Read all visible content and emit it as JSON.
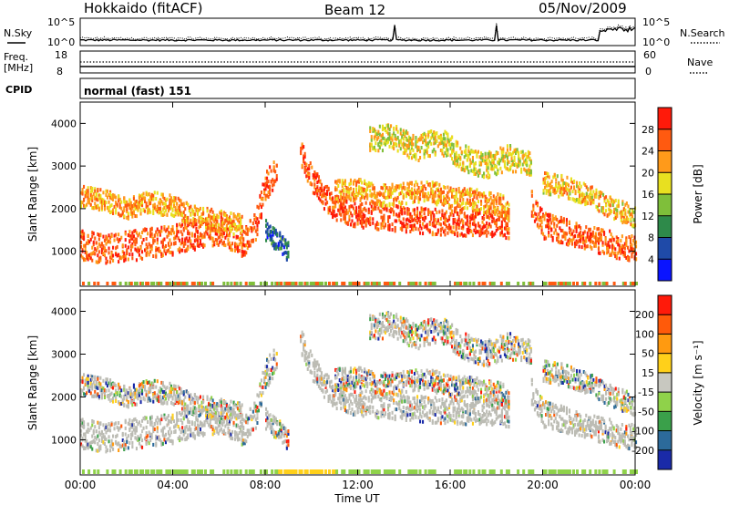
{
  "header": {
    "station": "Hokkaido (fitACF)",
    "beam": "Beam 12",
    "date": "05/Nov/2009"
  },
  "noise_panel": {
    "left_label": "N.Sky",
    "right_label": "N.Search",
    "tick_top": "10^5",
    "tick_bottom": "10^0"
  },
  "freq_panel": {
    "left_label_1": "Freq.",
    "left_label_2": "[MHz]",
    "right_label": "Nave",
    "left_ticks": [
      "18",
      "8"
    ],
    "right_ticks": [
      "60",
      "0"
    ]
  },
  "cpid_panel": {
    "label": "CPID",
    "mode": "normal (fast) 151"
  },
  "chart_data": [
    {
      "type": "heatmap",
      "title": "Power",
      "ylabel": "Slant Range [km]",
      "xlabel": "",
      "x_range_hours": [
        0,
        24
      ],
      "ylim": [
        180,
        4500
      ],
      "yticks": [
        "1000",
        "2000",
        "3000",
        "4000"
      ],
      "colorbar": {
        "label": "Power [dB]",
        "ticks": [
          "28",
          "24",
          "20",
          "16",
          "12",
          "8",
          "4"
        ],
        "colors": [
          "#0a14ff",
          "#1f4aa8",
          "#2e8a4a",
          "#7fbf3a",
          "#e8e020",
          "#ff9a1a",
          "#ff5a10",
          "#ff1a0a"
        ]
      },
      "echo_bands": [
        {
          "name": "main-F",
          "points": [
            [
              0,
              1150
            ],
            [
              1,
              1050
            ],
            [
              2,
              1100
            ],
            [
              3,
              1200
            ],
            [
              4,
              1250
            ],
            [
              5,
              1400
            ],
            [
              6,
              1500
            ],
            [
              7,
              1200
            ],
            [
              7.5,
              1500
            ],
            [
              8,
              2500
            ],
            [
              8.5,
              3000
            ]
          ],
          "width": 350,
          "power": 26
        },
        {
          "name": "upper",
          "points": [
            [
              0,
              2300
            ],
            [
              1,
              2200
            ],
            [
              2,
              2000
            ],
            [
              3,
              2150
            ],
            [
              4,
              2050
            ],
            [
              5,
              1800
            ],
            [
              6,
              1700
            ],
            [
              7,
              1600
            ]
          ],
          "width": 250,
          "power": 22
        },
        {
          "name": "descending",
          "points": [
            [
              9.5,
              3300
            ],
            [
              10,
              2700
            ],
            [
              10.5,
              2300
            ],
            [
              11,
              2000
            ],
            [
              12,
              1850
            ],
            [
              13,
              1800
            ],
            [
              14,
              1750
            ],
            [
              15,
              1700
            ],
            [
              16,
              1650
            ],
            [
              17,
              1650
            ],
            [
              18,
              1650
            ],
            [
              18.5,
              1600
            ]
          ],
          "width": 300,
          "power": 27
        },
        {
          "name": "upper-day",
          "points": [
            [
              11,
              2400
            ],
            [
              12,
              2450
            ],
            [
              13,
              2300
            ],
            [
              14,
              2350
            ],
            [
              15,
              2400
            ],
            [
              16,
              2250
            ],
            [
              17,
              2200
            ],
            [
              18,
              2100
            ],
            [
              18.5,
              2000
            ]
          ],
          "width": 250,
          "power": 22
        },
        {
          "name": "evening",
          "points": [
            [
              19.5,
              2100
            ],
            [
              20,
              1600
            ],
            [
              21,
              1450
            ],
            [
              22,
              1300
            ],
            [
              23,
              1150
            ],
            [
              24,
              1050
            ]
          ],
          "width": 300,
          "power": 26
        },
        {
          "name": "evening-upper",
          "points": [
            [
              20,
              2600
            ],
            [
              21,
              2500
            ],
            [
              22,
              2300
            ],
            [
              23,
              2000
            ],
            [
              24,
              1800
            ]
          ],
          "width": 250,
          "power": 20
        },
        {
          "name": "top-patches",
          "points": [
            [
              12.5,
              3600
            ],
            [
              13.5,
              3700
            ],
            [
              14.5,
              3400
            ],
            [
              15.5,
              3600
            ],
            [
              16.5,
              3200
            ],
            [
              17.5,
              3000
            ],
            [
              18.5,
              3200
            ],
            [
              19.5,
              3000
            ]
          ],
          "width": 300,
          "power": 18
        },
        {
          "name": "ground-low",
          "points": [
            [
              8,
              1500
            ],
            [
              8.6,
              1200
            ],
            [
              9,
              1000
            ]
          ],
          "width": 250,
          "power": 8
        }
      ]
    },
    {
      "type": "heatmap",
      "title": "Velocity",
      "ylabel": "Slant Range [km]",
      "xlabel": "Time UT",
      "x_range_hours": [
        0,
        24
      ],
      "ylim": [
        180,
        4500
      ],
      "yticks": [
        "1000",
        "2000",
        "3000",
        "4000"
      ],
      "xticks": [
        "00:00",
        "04:00",
        "08:00",
        "12:00",
        "16:00",
        "20:00",
        "00:00"
      ],
      "colorbar": {
        "label": "Velocity [m s⁻¹]",
        "ticks": [
          "200",
          "100",
          "50",
          "15",
          "-15",
          "-50",
          "-100",
          "-200"
        ],
        "colors": [
          "#1a2aa8",
          "#2c6a9a",
          "#3aa04a",
          "#8fd24a",
          "#c8c8c0",
          "#ffd01a",
          "#ff9a10",
          "#ff5a0a",
          "#ff1a0a"
        ]
      },
      "ground_scatter_color": "#bcbcb4"
    }
  ]
}
